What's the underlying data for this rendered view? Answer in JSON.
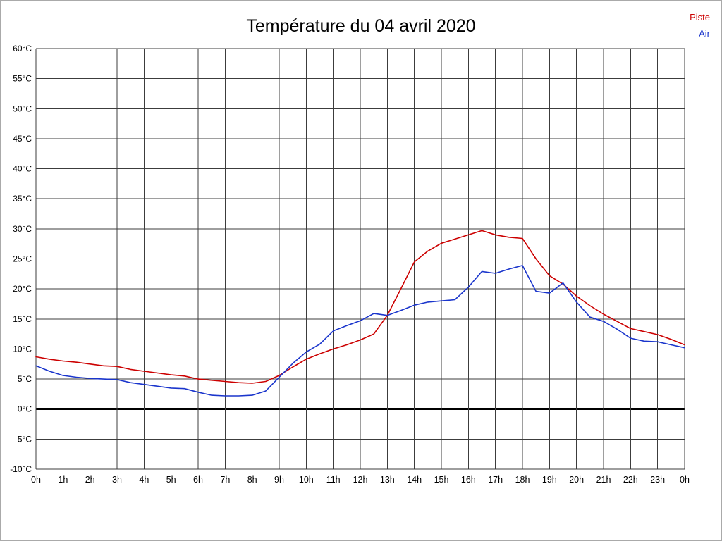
{
  "title": "Température du 04 avril 2020",
  "legend": [
    {
      "label": "Piste",
      "color": "#cc0000"
    },
    {
      "label": "Air",
      "color": "#1a35cc"
    }
  ],
  "chart_data": {
    "type": "line",
    "title": "Température du 04 avril 2020",
    "xlabel": "",
    "ylabel": "",
    "xlim": [
      0,
      24
    ],
    "ylim": [
      -10,
      60
    ],
    "x_tick_interval": 1,
    "grid": true,
    "zero_line_bold": true,
    "legend_position": "top-right",
    "x_tick_labels": [
      "0h",
      "1h",
      "2h",
      "3h",
      "4h",
      "5h",
      "6h",
      "7h",
      "8h",
      "9h",
      "10h",
      "11h",
      "12h",
      "13h",
      "14h",
      "15h",
      "16h",
      "17h",
      "18h",
      "19h",
      "20h",
      "21h",
      "22h",
      "23h",
      "0h"
    ],
    "y_tick_values": [
      60,
      55,
      50,
      45,
      40,
      35,
      30,
      25,
      20,
      15,
      10,
      5,
      0,
      -5,
      -10
    ],
    "y_tick_labels": [
      "60°C",
      "55°C",
      "50°C",
      "45°C",
      "40°C",
      "35°C",
      "30°C",
      "25°C",
      "20°C",
      "15°C",
      "10°C",
      "5°C",
      "0°C",
      "-5°C",
      "-10°C"
    ],
    "x": [
      0,
      0.5,
      1,
      1.5,
      2,
      2.5,
      3,
      3.5,
      4,
      4.5,
      5,
      5.5,
      6,
      6.5,
      7,
      7.5,
      8,
      8.5,
      9,
      9.5,
      10,
      10.5,
      11,
      11.5,
      12,
      12.5,
      13,
      13.5,
      14,
      14.5,
      15,
      15.5,
      16,
      16.5,
      17,
      17.5,
      18,
      18.5,
      19,
      19.5,
      20,
      20.5,
      21,
      21.5,
      22,
      22.5,
      23,
      23.5,
      24
    ],
    "series": [
      {
        "name": "Piste",
        "color": "#cc0000",
        "values": [
          8.7,
          8.3,
          8.0,
          7.8,
          7.5,
          7.2,
          7.1,
          6.6,
          6.3,
          6.0,
          5.7,
          5.5,
          5.0,
          4.8,
          4.6,
          4.4,
          4.3,
          4.6,
          5.6,
          7.0,
          8.3,
          9.2,
          10.0,
          10.7,
          11.5,
          12.5,
          15.6,
          20.0,
          24.5,
          26.3,
          27.6,
          28.3,
          29.0,
          29.7,
          29.0,
          28.6,
          28.4,
          25.0,
          22.2,
          20.8,
          18.8,
          17.2,
          15.8,
          14.6,
          13.4,
          12.9,
          12.4,
          11.6,
          10.7
        ]
      },
      {
        "name": "Air",
        "color": "#1a35cc",
        "values": [
          7.2,
          6.3,
          5.6,
          5.3,
          5.1,
          5.0,
          4.9,
          4.4,
          4.1,
          3.8,
          3.5,
          3.4,
          2.8,
          2.3,
          2.2,
          2.2,
          2.3,
          3.0,
          5.3,
          7.6,
          9.5,
          10.8,
          13.0,
          13.9,
          14.7,
          15.9,
          15.6,
          16.4,
          17.3,
          17.8,
          18.0,
          18.2,
          20.3,
          22.9,
          22.6,
          23.3,
          23.9,
          19.6,
          19.3,
          21.0,
          17.8,
          15.3,
          14.6,
          13.3,
          11.8,
          11.3,
          11.2,
          10.7,
          10.2
        ]
      }
    ]
  }
}
